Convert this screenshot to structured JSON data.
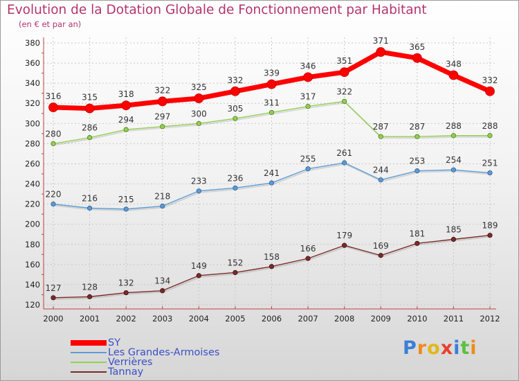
{
  "title": "Evolution de la Dotation Globale de Fonctionnement par Habitant",
  "subtitle": "(en € et par an)",
  "logo_text": "Proxiti",
  "chart_data": {
    "type": "line",
    "x": [
      2000,
      2001,
      2002,
      2003,
      2004,
      2005,
      2006,
      2007,
      2008,
      2009,
      2010,
      2011,
      2012
    ],
    "ylim": [
      120,
      380
    ],
    "yticks": [
      120,
      140,
      160,
      180,
      200,
      220,
      240,
      260,
      280,
      300,
      320,
      340,
      360,
      380
    ],
    "grid": true,
    "legend_position": "bottom-left",
    "series": [
      {
        "name": "SY",
        "color": "#ff0000",
        "values": [
          316,
          315,
          318,
          322,
          325,
          332,
          339,
          346,
          351,
          371,
          365,
          348,
          332
        ]
      },
      {
        "name": "Les Grandes-Armoises",
        "color": "#5b9bd5",
        "values": [
          220,
          216,
          215,
          218,
          233,
          236,
          241,
          255,
          261,
          244,
          253,
          254,
          251
        ]
      },
      {
        "name": "Verrières",
        "color": "#92d050",
        "values": [
          280,
          286,
          294,
          297,
          300,
          305,
          311,
          317,
          322,
          287,
          287,
          288,
          288
        ]
      },
      {
        "name": "Tannay",
        "color": "#7b2a2a",
        "values": [
          127,
          128,
          132,
          134,
          149,
          152,
          158,
          166,
          179,
          169,
          181,
          185,
          189
        ]
      }
    ]
  }
}
